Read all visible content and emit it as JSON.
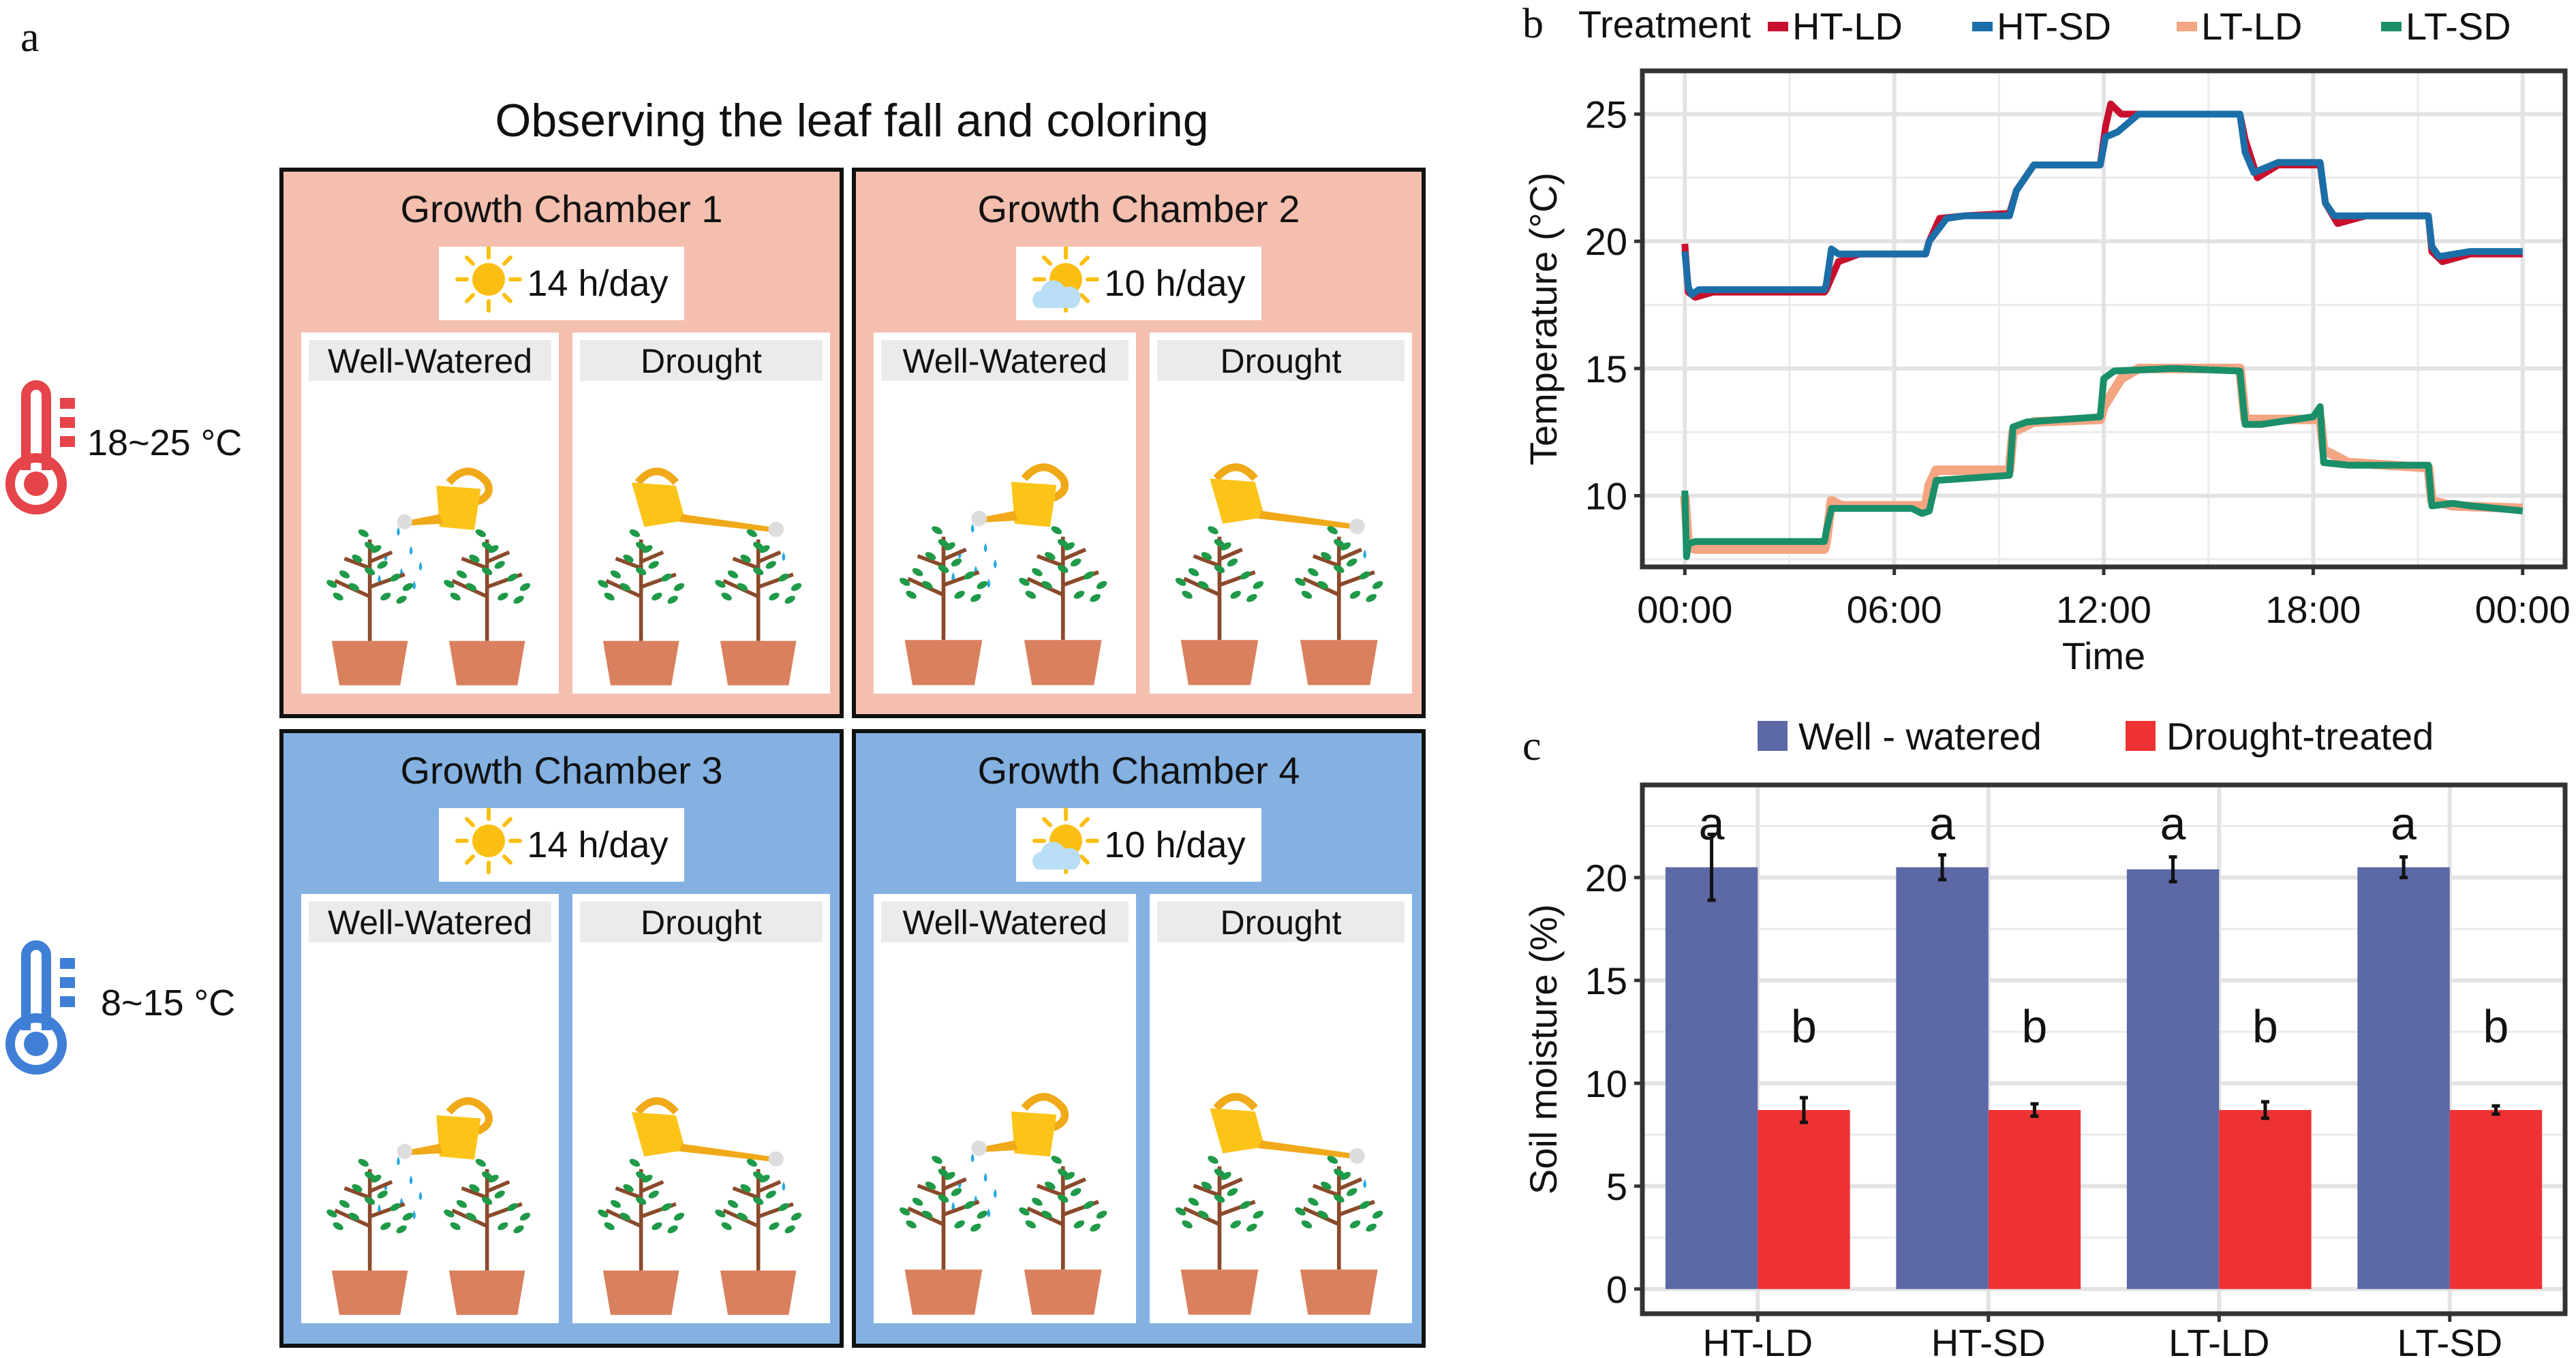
{
  "panels": {
    "a": "a",
    "b": "b",
    "c": "c"
  },
  "diagram": {
    "title": "Observing the leaf fall and coloring",
    "temperature_groups": [
      {
        "label": "18~25 °C",
        "icon": "thermometer-icon",
        "color": "#e5444a"
      },
      {
        "label": "8~15 °C",
        "icon": "thermometer-icon",
        "color": "#3f7fd6"
      }
    ],
    "chambers": [
      {
        "title": "Growth Chamber 1",
        "photoperiod": "14 h/day",
        "light_icon": "sun-icon",
        "theme": "warm",
        "treatments": [
          "Well-Watered",
          "Drought"
        ]
      },
      {
        "title": "Growth Chamber 2",
        "photoperiod": "10 h/day",
        "light_icon": "sun-cloud-icon",
        "theme": "warm",
        "treatments": [
          "Well-Watered",
          "Drought"
        ]
      },
      {
        "title": "Growth Chamber 3",
        "photoperiod": "14 h/day",
        "light_icon": "sun-icon",
        "theme": "cool",
        "treatments": [
          "Well-Watered",
          "Drought"
        ]
      },
      {
        "title": "Growth Chamber 4",
        "photoperiod": "10 h/day",
        "light_icon": "sun-cloud-icon",
        "theme": "cool",
        "treatments": [
          "Well-Watered",
          "Drought"
        ]
      }
    ],
    "colors": {
      "warm_chamber": "#f4bfae",
      "cool_chamber": "#84b1e2",
      "sun": "#fbbf14",
      "cloud": "#b9def5",
      "water": "#29a9e1",
      "pot": "#d9805e",
      "leaf": "#1f9a48",
      "stem": "#8a4a2b",
      "can": "#fcc419"
    }
  },
  "chart_data": [
    {
      "type": "line",
      "title": "",
      "legend_title": "Treatment",
      "legend_position": "top",
      "xlabel": "Time",
      "ylabel": "Temperature (°C)",
      "x_ticks": [
        "00:00",
        "06:00",
        "12:00",
        "18:00",
        "00:00"
      ],
      "x_range_hours": [
        0,
        24
      ],
      "y_ticks": [
        10,
        15,
        20,
        25
      ],
      "ylim": [
        7.2,
        26.7
      ],
      "grid": true,
      "series": [
        {
          "name": "HT-LD",
          "color": "#c8102e",
          "x": [
            0,
            0.1,
            0.3,
            0.8,
            4.0,
            4.05,
            4.4,
            5.0,
            6.9,
            7.0,
            7.3,
            8.0,
            9.3,
            9.5,
            10.0,
            11.9,
            12.05,
            12.2,
            12.5,
            15.9,
            16.05,
            16.4,
            17.0,
            18.2,
            18.35,
            18.7,
            19.5,
            21.3,
            21.4,
            21.7,
            22.5,
            24.0
          ],
          "y": [
            19.9,
            18.0,
            17.8,
            18.0,
            18.0,
            18.1,
            19.2,
            19.5,
            19.5,
            20.0,
            20.9,
            21.0,
            21.1,
            22.0,
            23.0,
            23.0,
            24.5,
            25.4,
            25.0,
            25.0,
            24.0,
            22.5,
            23.0,
            23.0,
            21.5,
            20.7,
            21.0,
            21.0,
            19.6,
            19.2,
            19.5,
            19.5
          ]
        },
        {
          "name": "HT-SD",
          "color": "#1b6fa8",
          "x": [
            0,
            0.1,
            0.2,
            0.4,
            4.0,
            4.05,
            4.2,
            4.4,
            6.9,
            7.0,
            7.5,
            8.0,
            9.3,
            9.5,
            10.0,
            11.9,
            12.05,
            12.4,
            13.0,
            15.9,
            16.05,
            16.3,
            17.0,
            18.2,
            18.35,
            18.6,
            19.5,
            21.3,
            21.4,
            21.6,
            22.5,
            24.0
          ],
          "y": [
            19.6,
            18.2,
            17.9,
            18.1,
            18.1,
            18.3,
            19.7,
            19.5,
            19.5,
            20.0,
            20.9,
            21.0,
            21.0,
            22.0,
            23.0,
            23.0,
            24.1,
            24.3,
            25.0,
            25.0,
            23.5,
            22.7,
            23.1,
            23.1,
            21.5,
            21.0,
            21.0,
            21.0,
            19.8,
            19.4,
            19.6,
            19.6
          ]
        },
        {
          "name": "LT-LD",
          "color": "#f4a582",
          "x": [
            0,
            0.1,
            0.3,
            4.0,
            4.05,
            4.2,
            4.5,
            6.9,
            7.0,
            7.2,
            9.3,
            9.4,
            10.0,
            11.9,
            12.0,
            12.5,
            13.0,
            15.9,
            16.05,
            17.0,
            18.2,
            18.3,
            19.0,
            21.3,
            21.4,
            22.0,
            24.0
          ],
          "y": [
            10.0,
            8.0,
            7.9,
            7.9,
            8.2,
            9.8,
            9.6,
            9.6,
            10.4,
            11.0,
            11.0,
            12.5,
            12.9,
            13.0,
            13.5,
            14.6,
            15.0,
            15.0,
            13.0,
            13.0,
            13.0,
            11.8,
            11.3,
            11.1,
            9.8,
            9.6,
            9.5
          ]
        },
        {
          "name": "LT-SD",
          "color": "#1a8f6a",
          "x": [
            0,
            0.05,
            0.1,
            0.3,
            1.0,
            4.0,
            4.05,
            4.2,
            6.5,
            6.8,
            7.0,
            7.2,
            9.3,
            9.4,
            9.8,
            11.9,
            12.0,
            12.3,
            14.0,
            15.9,
            16.05,
            16.5,
            17.0,
            18.0,
            18.2,
            18.3,
            19.0,
            21.3,
            21.4,
            22.0,
            22.5,
            24.0
          ],
          "y": [
            10.2,
            7.6,
            8.1,
            8.2,
            8.2,
            8.2,
            8.6,
            9.5,
            9.5,
            9.3,
            9.4,
            10.6,
            10.8,
            12.7,
            12.9,
            13.1,
            14.6,
            14.9,
            15.0,
            14.9,
            12.8,
            12.8,
            12.9,
            13.1,
            13.5,
            11.3,
            11.2,
            11.2,
            9.6,
            9.7,
            9.6,
            9.4
          ]
        }
      ]
    },
    {
      "type": "bar",
      "title": "",
      "legend_position": "top",
      "xlabel": "",
      "ylabel": "Soil moisture (%)",
      "categories": [
        "HT-LD",
        "HT-SD",
        "LT-LD",
        "LT-SD"
      ],
      "y_ticks": [
        0,
        5,
        10,
        15,
        20
      ],
      "ylim": [
        -1.2,
        24.5
      ],
      "grid": true,
      "series": [
        {
          "name": "Well - watered",
          "color": "#5d68a6",
          "values": [
            20.5,
            20.5,
            20.4,
            20.5
          ],
          "errors": [
            1.6,
            0.6,
            0.6,
            0.5
          ],
          "letters": [
            "a",
            "a",
            "a",
            "a"
          ]
        },
        {
          "name": "Drought-treated",
          "color": "#ee3233",
          "values": [
            8.7,
            8.7,
            8.7,
            8.7
          ],
          "errors": [
            0.6,
            0.3,
            0.4,
            0.2
          ],
          "letters": [
            "b",
            "b",
            "b",
            "b"
          ]
        }
      ]
    }
  ]
}
